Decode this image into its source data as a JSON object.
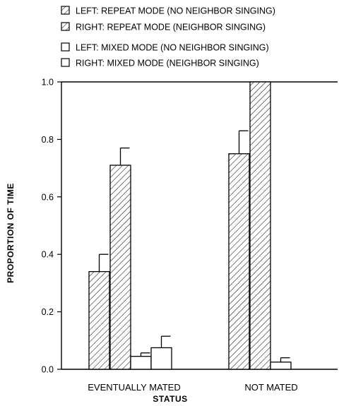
{
  "chart_data": {
    "type": "bar",
    "xlabel": "STATUS",
    "ylabel": "PROPORTION OF TIME",
    "ylim": [
      0.0,
      1.0
    ],
    "yticks": [
      "0.0",
      "0.2",
      "0.4",
      "0.6",
      "0.8",
      "1.0"
    ],
    "categories": [
      "EVENTUALLY MATED",
      "NOT MATED"
    ],
    "legend_position": "top",
    "series": [
      {
        "name": "LEFT: REPEAT MODE (NO NEIGHBOR SINGING)",
        "pattern": "hatched",
        "values": [
          0.34,
          0.75
        ],
        "errors": [
          0.06,
          0.08
        ]
      },
      {
        "name": "RIGHT: REPEAT MODE (NEIGHBOR SINGING)",
        "pattern": "hatched",
        "values": [
          0.71,
          1.0
        ],
        "errors": [
          0.06,
          0.0
        ]
      },
      {
        "name": "LEFT: MIXED MODE (NO NEIGHBOR SINGING)",
        "pattern": "open",
        "values": [
          0.045,
          0.025
        ],
        "errors": [
          0.012,
          0.015
        ]
      },
      {
        "name": "RIGHT: MIXED MODE (NEIGHBOR SINGING)",
        "pattern": "open",
        "values": [
          0.075,
          null
        ],
        "errors": [
          0.04,
          null
        ]
      }
    ]
  }
}
